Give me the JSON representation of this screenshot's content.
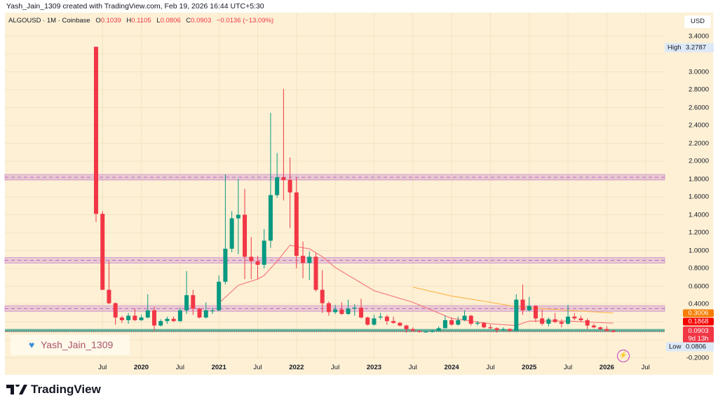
{
  "attribution": "Yash_Jain_1309 created with TradingView.com, Feb 19, 2026 16:44 UTC+5:30",
  "legend": {
    "symbol": "ALGOUSD · 1M · Coinbase",
    "o_label": "O",
    "o": "0.1039",
    "h_label": "H",
    "h": "0.1105",
    "l_label": "L",
    "l": "0.0806",
    "c_label": "C",
    "c": "0.0903",
    "change": "−0.0136 (−13.09%)"
  },
  "currency": "USD",
  "watermark": "Yash_Jain_1309",
  "brand": "TradingView",
  "price_labels": {
    "high_tag": "High",
    "high": "3.2787",
    "ma_long": "0.3006",
    "ma_short": "0.1868",
    "last": "0.0903",
    "countdown": "9d 13h",
    "low_tag": "Low",
    "low": "0.0806"
  },
  "colors": {
    "up": "#089981",
    "down": "#f23645",
    "background": "#fdf0d5",
    "zone": "#ba68c8",
    "support": "#5fae98",
    "ma_short": "#f77c80",
    "ma_long": "#ffb74d"
  },
  "icons": [
    "heart-icon",
    "lightning-icon",
    "tradingview-logo-icon"
  ],
  "chart_data": {
    "type": "candlestick",
    "title": "ALGOUSD · 1M · Coinbase",
    "ylim": [
      -0.2,
      3.4
    ],
    "y_ticks": [
      "3.4000",
      "3.0000",
      "2.8000",
      "2.6000",
      "2.4000",
      "2.2000",
      "2.0000",
      "1.8000",
      "1.6000",
      "1.4000",
      "1.2000",
      "1.0000",
      "0.8000",
      "0.6000",
      "0.4000",
      "-0.2000"
    ],
    "x_ticks": [
      {
        "label": "Jul",
        "date": "2019-07"
      },
      {
        "label": "2020",
        "date": "2020-01"
      },
      {
        "label": "Jul",
        "date": "2020-07"
      },
      {
        "label": "2021",
        "date": "2021-01"
      },
      {
        "label": "Jul",
        "date": "2021-07"
      },
      {
        "label": "2022",
        "date": "2022-01"
      },
      {
        "label": "Jul",
        "date": "2022-07"
      },
      {
        "label": "2023",
        "date": "2023-01"
      },
      {
        "label": "Jul",
        "date": "2023-07"
      },
      {
        "label": "2024",
        "date": "2024-01"
      },
      {
        "label": "Jul",
        "date": "2024-07"
      },
      {
        "label": "2025",
        "date": "2025-01"
      },
      {
        "label": "Jul",
        "date": "2025-07"
      },
      {
        "label": "2026",
        "date": "2026-01"
      },
      {
        "label": "Jul",
        "date": "2026-07"
      }
    ],
    "start": "2019-06",
    "ohlc": [
      [
        3.28,
        3.28,
        1.32,
        1.41
      ],
      [
        1.41,
        1.44,
        0.56,
        0.56
      ],
      [
        0.56,
        0.88,
        0.4,
        0.41
      ],
      [
        0.41,
        0.42,
        0.17,
        0.25
      ],
      [
        0.25,
        0.27,
        0.19,
        0.22
      ],
      [
        0.22,
        0.3,
        0.18,
        0.27
      ],
      [
        0.27,
        0.35,
        0.21,
        0.22
      ],
      [
        0.22,
        0.28,
        0.21,
        0.25
      ],
      [
        0.25,
        0.51,
        0.24,
        0.33
      ],
      [
        0.33,
        0.37,
        0.1,
        0.16
      ],
      [
        0.16,
        0.23,
        0.15,
        0.21
      ],
      [
        0.21,
        0.26,
        0.18,
        0.235
      ],
      [
        0.235,
        0.26,
        0.2,
        0.21
      ],
      [
        0.21,
        0.36,
        0.2,
        0.33
      ],
      [
        0.33,
        0.77,
        0.29,
        0.5
      ],
      [
        0.5,
        0.56,
        0.28,
        0.35
      ],
      [
        0.35,
        0.36,
        0.24,
        0.25
      ],
      [
        0.25,
        0.42,
        0.24,
        0.33
      ],
      [
        0.33,
        0.36,
        0.29,
        0.33
      ],
      [
        0.33,
        0.72,
        0.32,
        0.65
      ],
      [
        0.65,
        1.85,
        0.62,
        1.02
      ],
      [
        1.02,
        1.44,
        0.98,
        1.36
      ],
      [
        1.36,
        1.8,
        0.96,
        1.4
      ],
      [
        1.4,
        1.69,
        0.68,
        0.93
      ],
      [
        0.93,
        1.15,
        0.68,
        0.88
      ],
      [
        0.88,
        0.94,
        0.68,
        0.84
      ],
      [
        0.84,
        1.24,
        0.8,
        1.11
      ],
      [
        1.11,
        2.54,
        1.03,
        1.62
      ],
      [
        1.62,
        2.09,
        1.59,
        1.82
      ],
      [
        1.82,
        2.81,
        1.56,
        1.79
      ],
      [
        1.79,
        2.04,
        1.25,
        1.65
      ],
      [
        1.65,
        1.82,
        0.8,
        0.94
      ],
      [
        0.94,
        1.1,
        0.69,
        0.86
      ],
      [
        0.86,
        0.99,
        0.67,
        0.93
      ],
      [
        0.93,
        0.97,
        0.54,
        0.56
      ],
      [
        0.56,
        0.78,
        0.3,
        0.41
      ],
      [
        0.41,
        0.43,
        0.27,
        0.31
      ],
      [
        0.31,
        0.39,
        0.29,
        0.34
      ],
      [
        0.34,
        0.42,
        0.28,
        0.29
      ],
      [
        0.29,
        0.45,
        0.28,
        0.35
      ],
      [
        0.35,
        0.4,
        0.27,
        0.36
      ],
      [
        0.36,
        0.46,
        0.24,
        0.25
      ],
      [
        0.25,
        0.26,
        0.16,
        0.17
      ],
      [
        0.17,
        0.28,
        0.16,
        0.24
      ],
      [
        0.25,
        0.3,
        0.23,
        0.26
      ],
      [
        0.26,
        0.28,
        0.17,
        0.21
      ],
      [
        0.21,
        0.26,
        0.18,
        0.19
      ],
      [
        0.19,
        0.2,
        0.15,
        0.16
      ],
      [
        0.16,
        0.17,
        0.08,
        0.12
      ],
      [
        0.12,
        0.14,
        0.1,
        0.1
      ],
      [
        0.1,
        0.11,
        0.08,
        0.09
      ],
      [
        0.09,
        0.1,
        0.08,
        0.09
      ],
      [
        0.09,
        0.11,
        0.08,
        0.1
      ],
      [
        0.1,
        0.15,
        0.1,
        0.13
      ],
      [
        0.13,
        0.27,
        0.13,
        0.22
      ],
      [
        0.22,
        0.25,
        0.16,
        0.17
      ],
      [
        0.17,
        0.26,
        0.16,
        0.22
      ],
      [
        0.22,
        0.33,
        0.21,
        0.27
      ],
      [
        0.27,
        0.28,
        0.16,
        0.18
      ],
      [
        0.18,
        0.21,
        0.16,
        0.19
      ],
      [
        0.19,
        0.2,
        0.13,
        0.14
      ],
      [
        0.14,
        0.17,
        0.12,
        0.13
      ],
      [
        0.13,
        0.14,
        0.08,
        0.11
      ],
      [
        0.11,
        0.14,
        0.1,
        0.12
      ],
      [
        0.12,
        0.13,
        0.1,
        0.1
      ],
      [
        0.1,
        0.51,
        0.1,
        0.45
      ],
      [
        0.45,
        0.62,
        0.28,
        0.33
      ],
      [
        0.33,
        0.48,
        0.32,
        0.38
      ],
      [
        0.38,
        0.39,
        0.2,
        0.24
      ],
      [
        0.24,
        0.34,
        0.16,
        0.18
      ],
      [
        0.18,
        0.25,
        0.15,
        0.23
      ],
      [
        0.23,
        0.3,
        0.19,
        0.2
      ],
      [
        0.2,
        0.23,
        0.14,
        0.18
      ],
      [
        0.18,
        0.39,
        0.17,
        0.26
      ],
      [
        0.26,
        0.3,
        0.22,
        0.24
      ],
      [
        0.24,
        0.27,
        0.2,
        0.22
      ],
      [
        0.22,
        0.24,
        0.12,
        0.16
      ],
      [
        0.16,
        0.18,
        0.13,
        0.14
      ],
      [
        0.14,
        0.15,
        0.11,
        0.12
      ],
      [
        0.12,
        0.15,
        0.1,
        0.1
      ],
      [
        0.1039,
        0.1105,
        0.0806,
        0.0903
      ]
    ],
    "ma_short": [
      [
        "2021-01",
        0.41
      ],
      [
        "2021-04",
        0.61
      ],
      [
        "2021-07",
        0.68
      ],
      [
        "2021-08",
        0.72
      ],
      [
        "2021-10",
        0.88
      ],
      [
        "2021-12",
        1.06
      ],
      [
        "2022-02",
        1.03
      ],
      [
        "2022-03",
        1.02
      ],
      [
        "2022-05",
        0.93
      ],
      [
        "2022-07",
        0.81
      ],
      [
        "2023-01",
        0.55
      ],
      [
        "2023-07",
        0.42
      ],
      [
        "2024-01",
        0.24
      ],
      [
        "2024-07",
        0.18
      ],
      [
        "2024-11",
        0.16
      ],
      [
        "2025-01",
        0.21
      ],
      [
        "2025-07",
        0.21
      ],
      [
        "2026-02",
        0.1868
      ]
    ],
    "ma_long": [
      [
        "2023-07",
        0.59
      ],
      [
        "2024-01",
        0.49
      ],
      [
        "2024-07",
        0.42
      ],
      [
        "2024-11",
        0.37
      ],
      [
        "2025-07",
        0.33
      ],
      [
        "2026-02",
        0.3006
      ]
    ],
    "zones": [
      1.82,
      0.89,
      0.35
    ],
    "support_line": 0.105,
    "last_price": 0.0903
  }
}
